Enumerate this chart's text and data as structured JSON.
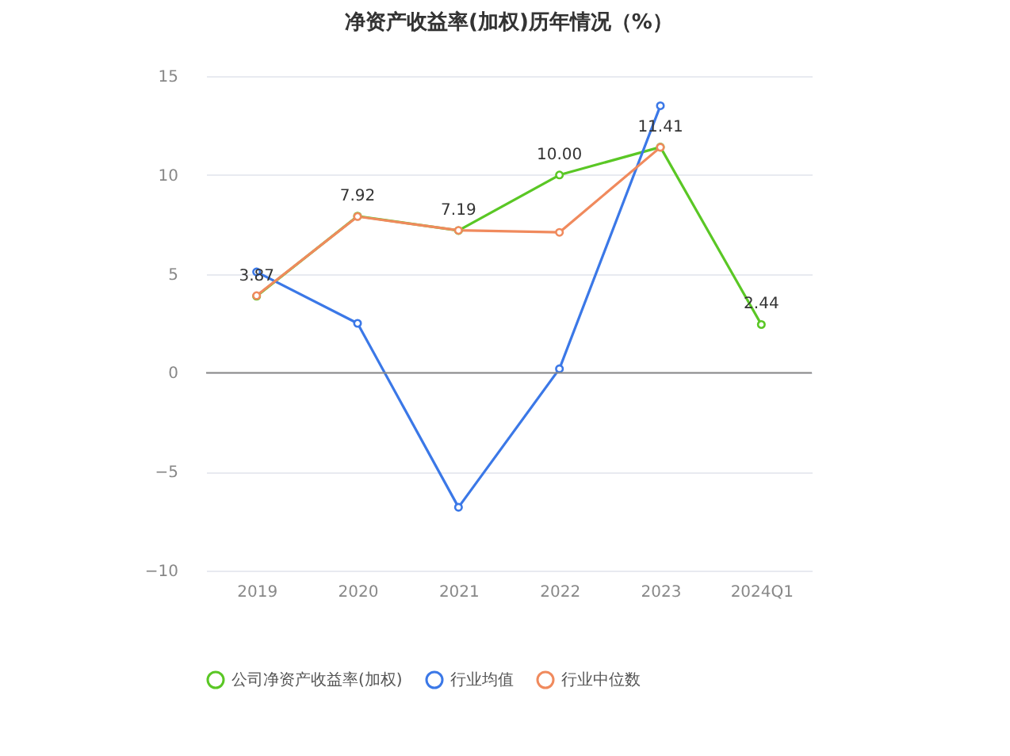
{
  "chart_data": {
    "type": "line",
    "title": "净资产收益率(加权)历年情况（%）",
    "categories": [
      "2019",
      "2020",
      "2021",
      "2022",
      "2023",
      "2024Q1"
    ],
    "series": [
      {
        "name": "公司净资产收益率(加权)",
        "color": "#5ac725",
        "values": [
          3.87,
          7.92,
          7.19,
          10.0,
          11.41,
          2.44
        ],
        "value_labels": [
          "3.87",
          "7.92",
          "7.19",
          "10.00",
          "11.41",
          "2.44"
        ]
      },
      {
        "name": "行业均值",
        "color": "#3b78e7",
        "values": [
          5.1,
          2.5,
          -6.8,
          0.2,
          13.5,
          null
        ]
      },
      {
        "name": "行业中位数",
        "color": "#f08a5d",
        "values": [
          3.9,
          7.9,
          7.2,
          7.1,
          11.4,
          null
        ]
      }
    ],
    "ylim": [
      -10,
      15
    ],
    "yticks": [
      -10,
      -5,
      0,
      5,
      10,
      15
    ],
    "ref_lines": [
      {
        "axis": "y",
        "value": 0,
        "color": "#888888"
      }
    ],
    "grid": "y",
    "legend": "bottom",
    "marker": "circle",
    "line_style": "solid"
  }
}
